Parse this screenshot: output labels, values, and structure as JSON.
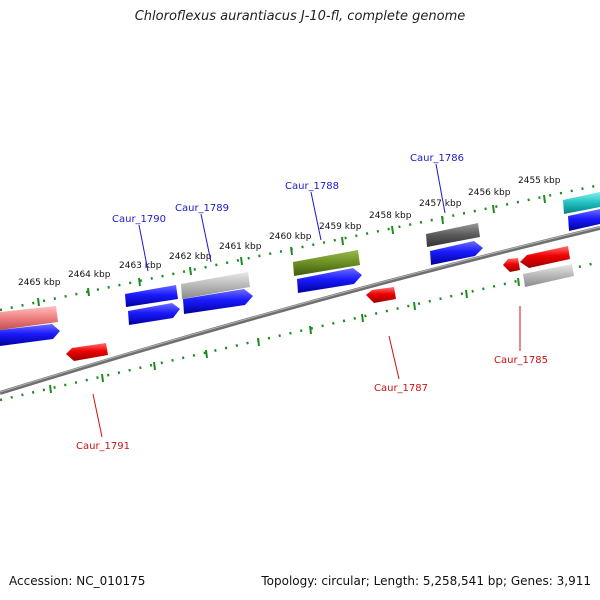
{
  "title": "Chloroflexus aurantiacus J-10-fl, complete genome",
  "footer": {
    "accession": "Accession: NC_010175",
    "info": "Topology: circular; Length: 5,258,541 bp; Genes: 3,911"
  },
  "kbp_labels": [
    "2465 kbp",
    "2464 kbp",
    "2463 kbp",
    "2462 kbp",
    "2461 kbp",
    "2460 kbp",
    "2459 kbp",
    "2458 kbp",
    "2457 kbp",
    "2456 kbp",
    "2455 kbp"
  ],
  "gene_labels_top": [
    "Caur_1790",
    "Caur_1789",
    "Caur_1788",
    "Caur_1786"
  ],
  "gene_labels_bottom": [
    "Caur_1791",
    "Caur_1787",
    "Caur_1785"
  ],
  "colors": {
    "backbone": "#777777",
    "tick": "#1f8a1f",
    "forward_gene": "#1a1aff",
    "reverse_gene": "#ee0000",
    "label_top": "#1a1acc",
    "label_bottom": "#cc1111"
  }
}
